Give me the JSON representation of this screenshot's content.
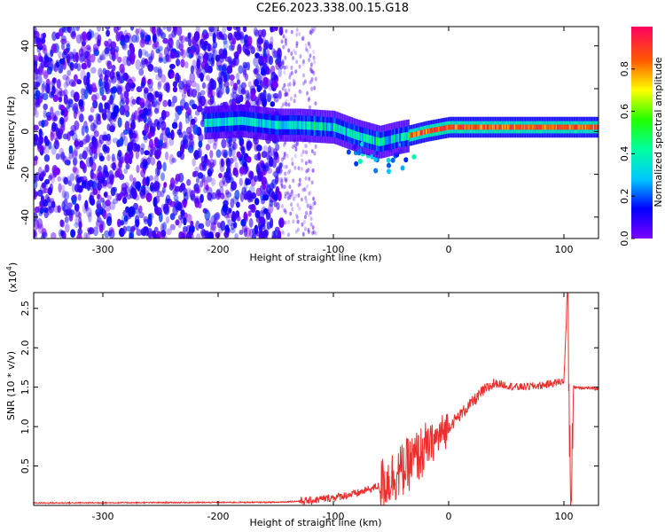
{
  "title": "C2E6.2023.338.00.15.G18",
  "chart_data": [
    {
      "type": "heatmap",
      "xlabel": "Height of straight line (km)",
      "ylabel": "Frequency (Hz)",
      "xlim": [
        -360,
        130
      ],
      "ylim": [
        -50,
        49
      ],
      "xticks": [
        -300,
        -200,
        -100,
        0,
        100
      ],
      "yticks": [
        -40,
        -20,
        0,
        20,
        40
      ],
      "colorbar": {
        "label": "Normalized spectral amplitude",
        "range": [
          0,
          1
        ],
        "ticks": [
          0.0,
          0.2,
          0.4,
          0.6,
          0.8
        ],
        "colormap": "rainbow"
      },
      "ridge": {
        "x": [
          -210,
          -180,
          -150,
          -130,
          -100,
          -80,
          -60,
          -45,
          -35,
          -20,
          0,
          50,
          100,
          130
        ],
        "y": [
          4,
          5,
          3,
          3,
          2,
          -2,
          -5,
          -3,
          -2,
          0,
          2,
          2,
          2,
          2
        ]
      }
    },
    {
      "type": "line",
      "xlabel": "Height of straight line (km)",
      "ylabel": "SNR (10 * v/v)",
      "y_multiplier": "(x10",
      "y_exponent": "4",
      "series_color": "#e8302e",
      "xlim": [
        -360,
        130
      ],
      "ylim": [
        0,
        2.7
      ],
      "xticks": [
        -300,
        -200,
        -100,
        0,
        100
      ],
      "yticks": [
        0.5,
        1.0,
        1.5,
        2.0,
        2.5
      ],
      "profile": {
        "x": [
          -360,
          -150,
          -120,
          -100,
          -80,
          -60,
          -40,
          -25,
          -10,
          0,
          10,
          20,
          30,
          40,
          60,
          80,
          90,
          100,
          103,
          106,
          108,
          110,
          130
        ],
        "y": [
          0.03,
          0.04,
          0.06,
          0.1,
          0.15,
          0.25,
          0.45,
          0.65,
          0.85,
          1.0,
          1.15,
          1.3,
          1.45,
          1.55,
          1.5,
          1.52,
          1.55,
          1.58,
          2.7,
          0.0,
          1.5,
          1.5,
          1.48
        ]
      }
    }
  ]
}
